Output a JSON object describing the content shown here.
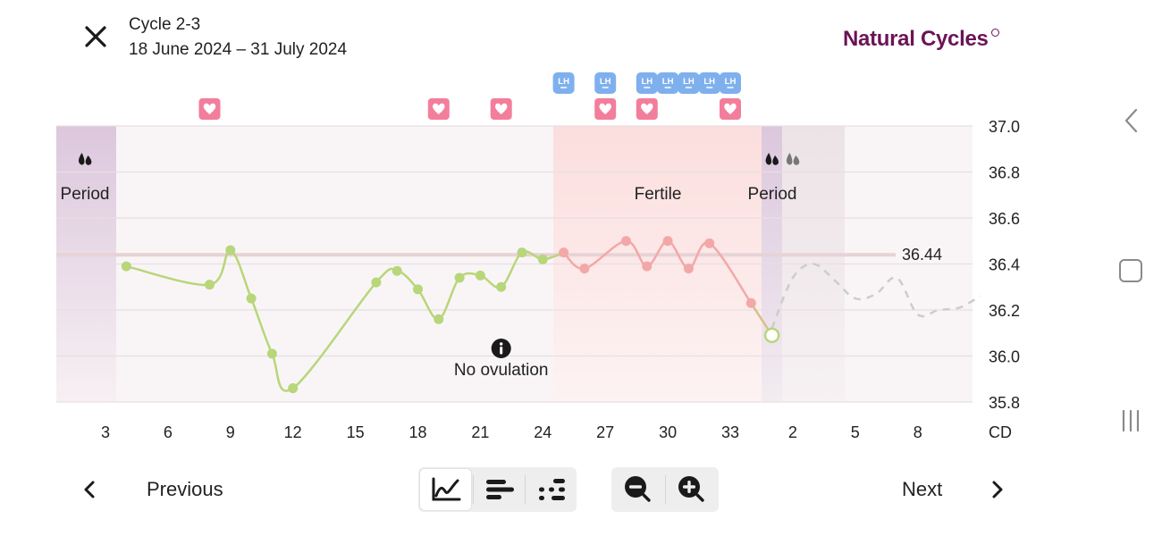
{
  "header": {
    "cycle_title": "Cycle 2-3",
    "date_range": "18 June 2024 – 31 July 2024",
    "brand": "Natural Cycles"
  },
  "chart_data": {
    "type": "line",
    "x_unit_label": "CD",
    "xticks": [
      "3",
      "6",
      "9",
      "12",
      "15",
      "18",
      "21",
      "24",
      "27",
      "30",
      "33",
      "2",
      "5",
      "8"
    ],
    "yticks": [
      "37.0",
      "36.8",
      "36.6",
      "36.4",
      "36.2",
      "36.0",
      "35.8"
    ],
    "ylim": [
      35.8,
      37.0
    ],
    "cover_line": {
      "value": 36.44,
      "label": "36.44"
    },
    "series": [
      {
        "color": "#b8d67a",
        "points": [
          [
            4,
            36.39
          ],
          [
            8,
            36.31
          ],
          [
            9,
            36.46
          ],
          [
            10,
            36.25
          ],
          [
            11,
            36.01
          ],
          [
            12,
            35.86
          ],
          [
            16,
            36.32
          ],
          [
            17,
            36.37
          ],
          [
            18,
            36.29
          ],
          [
            19,
            36.16
          ],
          [
            20,
            36.34
          ],
          [
            21,
            36.35
          ],
          [
            22,
            36.3
          ],
          [
            23,
            36.45
          ],
          [
            24,
            36.42
          ]
        ]
      },
      {
        "color": "#f2a8a8",
        "points": [
          [
            25,
            36.45
          ],
          [
            26,
            36.38
          ],
          [
            28,
            36.5
          ],
          [
            29,
            36.39
          ],
          [
            30,
            36.5
          ],
          [
            31,
            36.38
          ],
          [
            32,
            36.49
          ],
          [
            34,
            36.23
          ]
        ]
      },
      {
        "color": "#b8d67a",
        "points": [
          [
            35,
            36.09
          ]
        ],
        "hollow": true
      }
    ],
    "predicted": {
      "color": "#cccccc",
      "points": [
        [
          35,
          36.12
        ],
        [
          36,
          36.34
        ],
        [
          37,
          36.4
        ],
        [
          38,
          36.33
        ],
        [
          39,
          36.25
        ],
        [
          40,
          36.27
        ],
        [
          41,
          36.34
        ],
        [
          42,
          36.18
        ],
        [
          43,
          36.2
        ],
        [
          44,
          36.21
        ],
        [
          45,
          36.26
        ]
      ]
    },
    "bands": [
      {
        "name": "period-start",
        "from": 1.4,
        "to": 3.9,
        "label": "Period"
      },
      {
        "name": "fertile",
        "from": 25.0,
        "to": 34.5,
        "label": "Fertile"
      },
      {
        "name": "period-next",
        "from": 34.5,
        "to": 35.5,
        "label": "Period"
      },
      {
        "name": "period-predicted",
        "from": 35.5,
        "to": 38.5,
        "label": ""
      }
    ],
    "hearts": [
      8,
      19,
      22,
      27,
      29,
      33
    ],
    "lh_tests": [
      25,
      27,
      29,
      30,
      31,
      32,
      33
    ],
    "lh_label": "LH",
    "drops": [
      {
        "day": 2.8,
        "predicted": false
      },
      {
        "day": 35,
        "predicted": false
      },
      {
        "day": 36,
        "predicted": true
      }
    ],
    "annotation": {
      "day": 22,
      "label": "No ovulation",
      "icon": "info-icon"
    }
  },
  "bottom": {
    "previous_label": "Previous",
    "next_label": "Next",
    "view_buttons": [
      "curve-view-icon",
      "bars-view-icon",
      "dots-view-icon"
    ],
    "zoom_buttons": [
      "zoom-out-icon",
      "zoom-in-icon"
    ]
  },
  "system_nav": [
    "back-icon",
    "home-icon",
    "recents-icon"
  ]
}
